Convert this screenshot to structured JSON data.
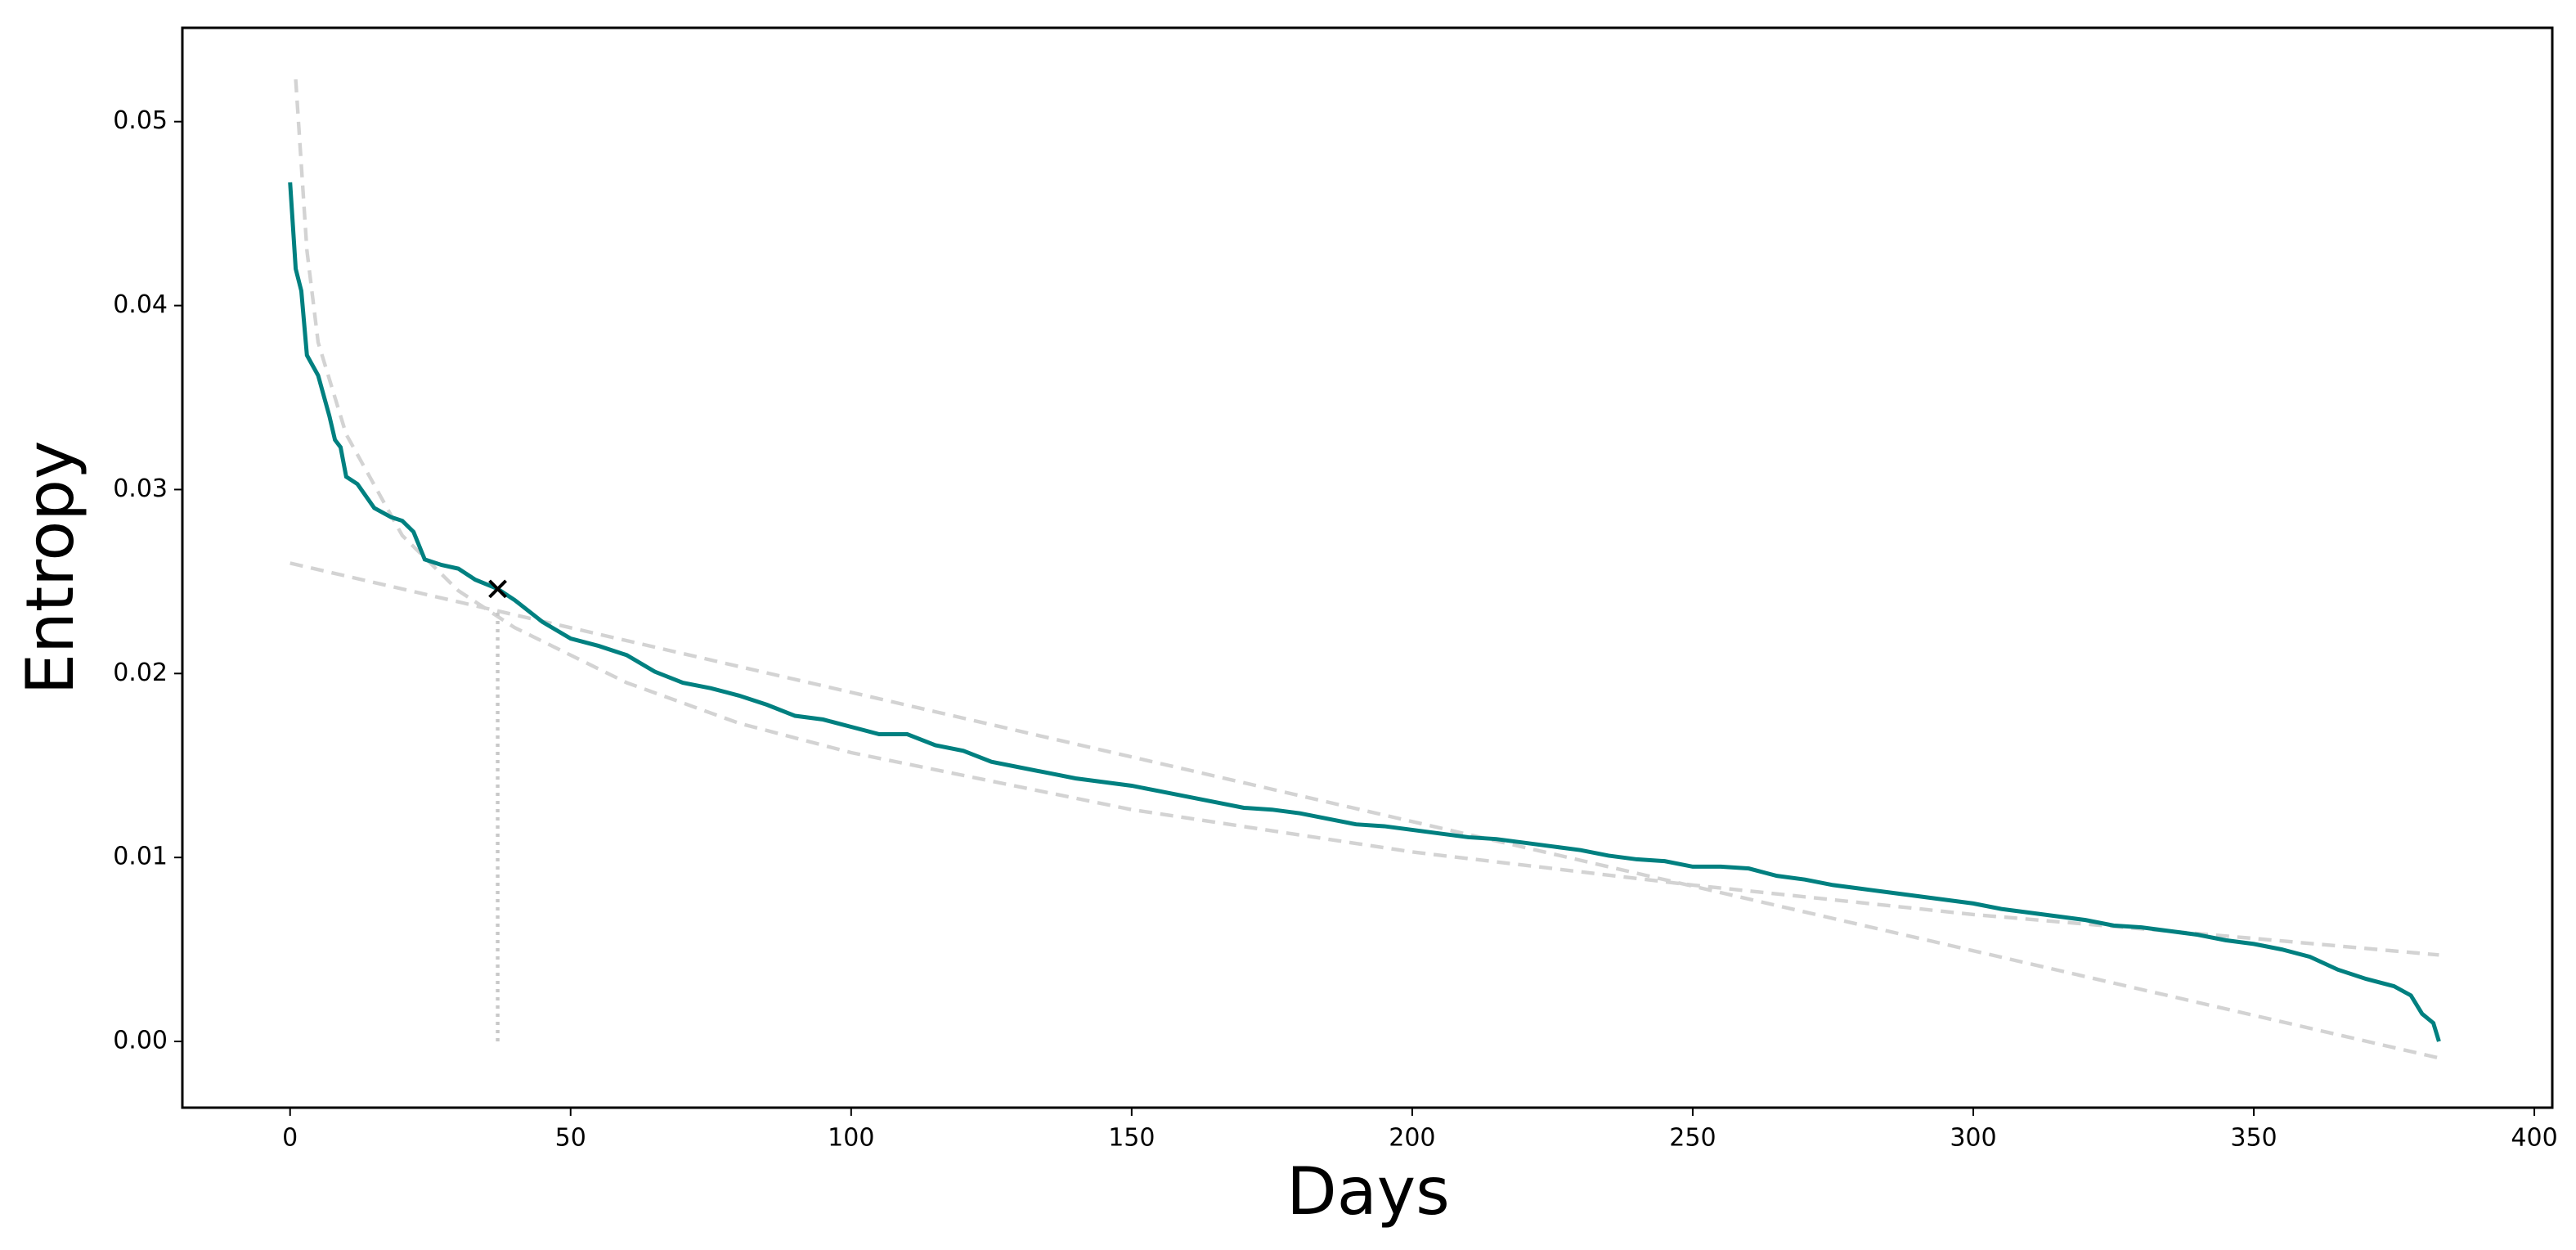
{
  "chart_data": {
    "type": "line",
    "xlabel": "Days",
    "ylabel": "Entropy",
    "xlim": [
      -19.2,
      403.2
    ],
    "ylim": [
      -0.0036,
      0.0551
    ],
    "xticks": [
      0,
      50,
      100,
      150,
      200,
      250,
      300,
      350,
      400
    ],
    "yticks": [
      {
        "value": 0,
        "label": "0.00"
      },
      0.01,
      0.02,
      0.03,
      0.04,
      0.05
    ],
    "series": [
      {
        "color": "#d3d3d3",
        "style": "dashed",
        "x": [
          1,
          3,
          5,
          10,
          20,
          30,
          40,
          60,
          80,
          100,
          150,
          200,
          250,
          300,
          350,
          383
        ],
        "values": [
          0.0523,
          0.043,
          0.038,
          0.033,
          0.0275,
          0.0245,
          0.0225,
          0.0195,
          0.0173,
          0.0157,
          0.0126,
          0.0103,
          0.0085,
          0.0069,
          0.0056,
          0.0047
        ]
      },
      {
        "color": "#d3d3d3",
        "style": "dashed",
        "x": [
          0,
          383
        ],
        "values": [
          0.026,
          -0.0009
        ]
      },
      {
        "color": "#c8c8c8",
        "style": "dotted",
        "x": [
          37,
          37
        ],
        "values": [
          0,
          0.0234
        ]
      },
      {
        "color": "#008080",
        "style": "solid",
        "x": [
          0,
          1,
          2,
          3,
          5,
          7,
          8,
          9,
          10,
          12,
          15,
          18,
          20,
          22,
          24,
          27,
          30,
          33,
          37,
          40,
          45,
          50,
          55,
          60,
          65,
          70,
          75,
          80,
          85,
          90,
          95,
          100,
          105,
          110,
          115,
          120,
          125,
          130,
          135,
          140,
          145,
          150,
          155,
          160,
          165,
          170,
          175,
          180,
          185,
          190,
          195,
          200,
          205,
          210,
          215,
          220,
          225,
          230,
          235,
          240,
          245,
          250,
          255,
          260,
          265,
          270,
          275,
          280,
          285,
          290,
          295,
          300,
          305,
          310,
          315,
          320,
          325,
          330,
          335,
          340,
          345,
          350,
          355,
          360,
          365,
          370,
          375,
          378,
          380,
          382,
          383
        ],
        "values": [
          0.0467,
          0.042,
          0.0408,
          0.0373,
          0.0362,
          0.034,
          0.0327,
          0.0323,
          0.0307,
          0.0303,
          0.029,
          0.0285,
          0.0283,
          0.0277,
          0.0262,
          0.0259,
          0.0257,
          0.0251,
          0.0246,
          0.024,
          0.0228,
          0.0219,
          0.0215,
          0.021,
          0.0201,
          0.0195,
          0.0192,
          0.0188,
          0.0183,
          0.0177,
          0.0175,
          0.0171,
          0.0167,
          0.0167,
          0.0161,
          0.0158,
          0.0152,
          0.0149,
          0.0146,
          0.0143,
          0.0141,
          0.0139,
          0.0136,
          0.0133,
          0.013,
          0.0127,
          0.0126,
          0.0124,
          0.0121,
          0.0118,
          0.0117,
          0.0115,
          0.0113,
          0.0111,
          0.011,
          0.0108,
          0.0106,
          0.0104,
          0.0101,
          0.0099,
          0.0098,
          0.0095,
          0.0095,
          0.0094,
          0.009,
          0.0088,
          0.0085,
          0.0083,
          0.0081,
          0.0079,
          0.0077,
          0.0075,
          0.0072,
          0.007,
          0.0068,
          0.0066,
          0.0063,
          0.0062,
          0.006,
          0.0058,
          0.0055,
          0.0053,
          0.005,
          0.0046,
          0.0039,
          0.0034,
          0.003,
          0.0025,
          0.0015,
          0.001,
          0.0
        ]
      },
      {
        "color": "#000000",
        "style": "marker",
        "x": [
          37
        ],
        "values": [
          0.0246
        ]
      }
    ]
  }
}
